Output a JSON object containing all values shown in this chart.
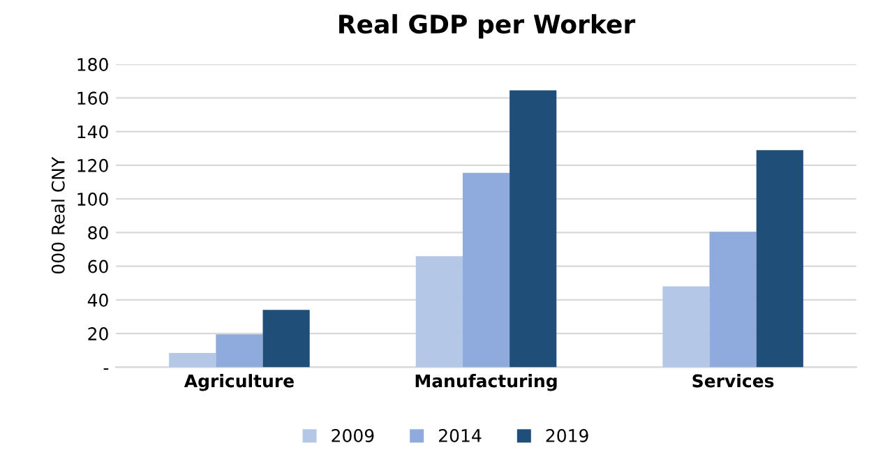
{
  "chart_data": {
    "type": "bar",
    "title": "Real GDP per Worker",
    "ylabel": "000 Real CNY",
    "categories": [
      "Agriculture",
      "Manufacturing",
      "Services"
    ],
    "series": [
      {
        "name": "2009",
        "color": "#b4c7e7",
        "values": [
          8.5,
          66,
          48
        ]
      },
      {
        "name": "2014",
        "color": "#8faadc",
        "values": [
          19.5,
          115.5,
          80.5
        ]
      },
      {
        "name": "2019",
        "color": "#1f4e79",
        "values": [
          34,
          164.5,
          129
        ]
      }
    ],
    "ylim": [
      0,
      180
    ],
    "yticks": [
      {
        "value": 0,
        "label": "-"
      },
      20,
      40,
      60,
      80,
      100,
      120,
      140,
      160,
      180
    ],
    "grid": "y",
    "legend": "bottom"
  }
}
